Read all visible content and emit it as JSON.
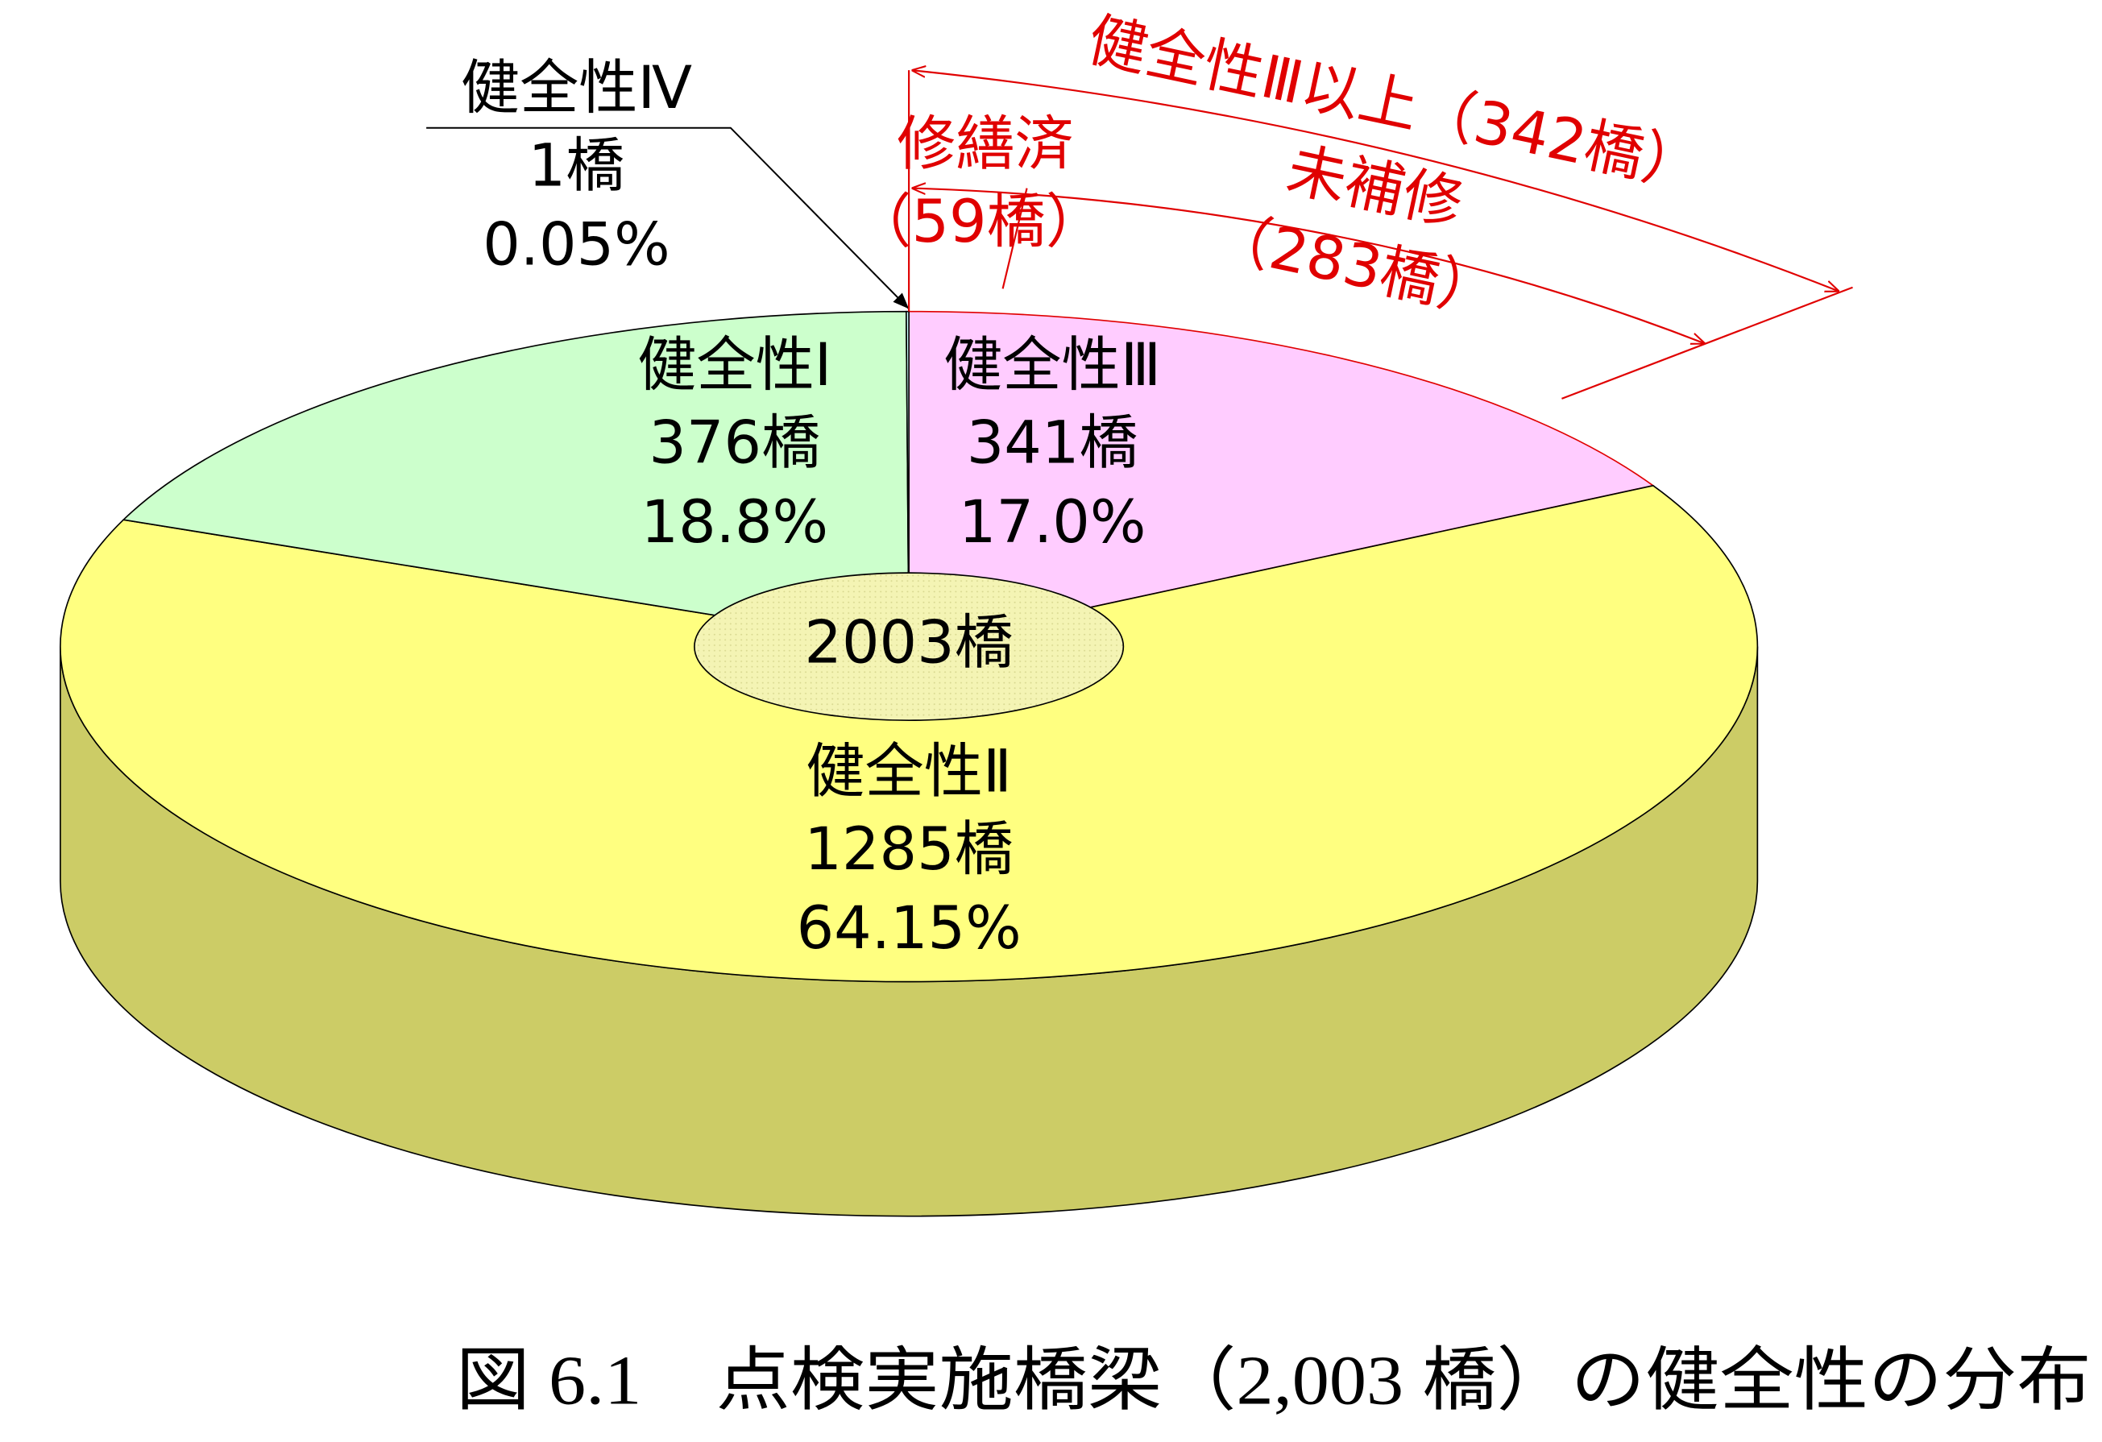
{
  "chart_data": {
    "type": "pie",
    "categories": [
      "健全性Ⅲ",
      "健全性Ⅱ",
      "健全性Ⅰ",
      "健全性Ⅳ"
    ],
    "values": [
      341,
      1285,
      376,
      1
    ],
    "value_labels": [
      "341橋",
      "1285橋",
      "376橋",
      "1橋"
    ],
    "percents": [
      17.0,
      64.15,
      18.8,
      0.05
    ],
    "percent_labels": [
      "17.0%",
      "64.15%",
      "18.8%",
      "0.05%"
    ],
    "colors": [
      "#ffccff",
      "#ffff80",
      "#ccffcc",
      "#ccffff"
    ],
    "side_colors": [
      "#cc99cc",
      "#cccc66",
      "#99cc99",
      "#99cccc"
    ],
    "center_label": "2003橋",
    "annotations": {
      "level3_plus": "健全性Ⅲ以上（342橋）",
      "repaired": "修繕済",
      "repaired_count": "（59橋）",
      "unrepaired": "未補修",
      "unrepaired_count": "（283橋）"
    },
    "caption": "図 6.1　点検実施橋梁（2,003 橋）の健全性の分布"
  }
}
